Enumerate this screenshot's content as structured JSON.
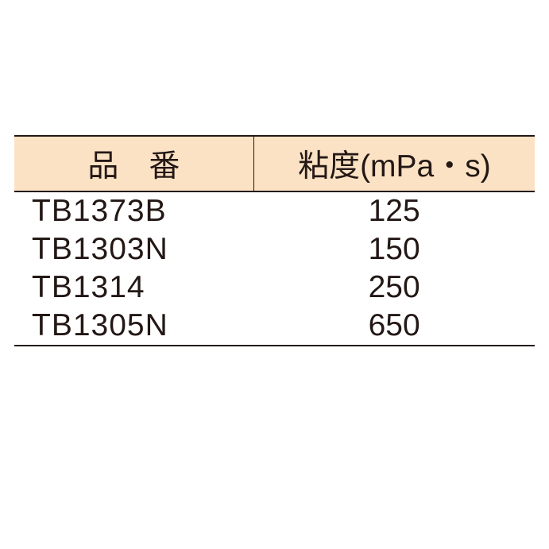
{
  "table": {
    "header_bg": "#fce2c4",
    "border_color": "#231815",
    "text_color": "#231815",
    "font_size_pt": 29,
    "columns": [
      {
        "label": "品番",
        "align": "left",
        "width_pct": 46
      },
      {
        "label": "粘度(mPa・s)",
        "align": "center",
        "width_pct": 54
      }
    ],
    "rows": [
      {
        "pn": "TB1373B",
        "val": "125"
      },
      {
        "pn": "TB1303N",
        "val": "150"
      },
      {
        "pn": "TB1314",
        "val": "250"
      },
      {
        "pn": "TB1305N",
        "val": "650"
      }
    ]
  }
}
